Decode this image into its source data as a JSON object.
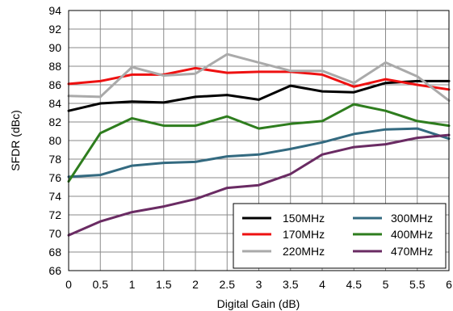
{
  "chart_data": {
    "type": "line",
    "title": "",
    "xlabel": "Digital Gain (dB)",
    "ylabel": "SFDR (dBc)",
    "xlim": [
      0,
      6
    ],
    "ylim": [
      66,
      94
    ],
    "x_ticks": [
      "0",
      "0.5",
      "1",
      "1.5",
      "2",
      "2.5",
      "3",
      "3.5",
      "4",
      "4.5",
      "5",
      "5.5",
      "6"
    ],
    "y_ticks": [
      "66",
      "68",
      "70",
      "72",
      "74",
      "76",
      "78",
      "80",
      "82",
      "84",
      "86",
      "88",
      "90",
      "92",
      "94"
    ],
    "grid": true,
    "legend_position": "bottom-right",
    "x": [
      0,
      0.5,
      1,
      1.5,
      2,
      2.5,
      3,
      3.5,
      4,
      4.5,
      5,
      5.5,
      6
    ],
    "series": [
      {
        "name": "150MHz",
        "color": "#000000",
        "values": [
          83.2,
          84.0,
          84.2,
          84.1,
          84.7,
          84.9,
          84.4,
          85.9,
          85.3,
          85.2,
          86.2,
          86.4,
          86.4
        ]
      },
      {
        "name": "170MHz",
        "color": "#ee1111",
        "values": [
          86.1,
          86.4,
          87.1,
          87.1,
          87.8,
          87.3,
          87.4,
          87.4,
          87.1,
          85.8,
          86.6,
          86.0,
          85.5
        ]
      },
      {
        "name": "220MHz",
        "color": "#aaaaaa",
        "values": [
          84.8,
          84.7,
          87.9,
          87.0,
          87.2,
          89.3,
          88.4,
          87.5,
          87.5,
          86.2,
          88.4,
          86.9,
          84.3
        ]
      },
      {
        "name": "300MHz",
        "color": "#336a80",
        "values": [
          76.1,
          76.3,
          77.3,
          77.6,
          77.7,
          78.3,
          78.5,
          79.1,
          79.8,
          80.7,
          81.2,
          81.3,
          80.2
        ]
      },
      {
        "name": "400MHz",
        "color": "#2e7d1e",
        "values": [
          75.6,
          80.8,
          82.4,
          81.6,
          81.6,
          82.6,
          81.3,
          81.8,
          82.1,
          83.9,
          83.2,
          82.1,
          81.6
        ]
      },
      {
        "name": "470MHz",
        "color": "#6a2b63",
        "values": [
          69.8,
          71.3,
          72.3,
          72.9,
          73.7,
          74.9,
          75.2,
          76.4,
          78.5,
          79.3,
          79.6,
          80.3,
          80.6
        ]
      }
    ]
  }
}
